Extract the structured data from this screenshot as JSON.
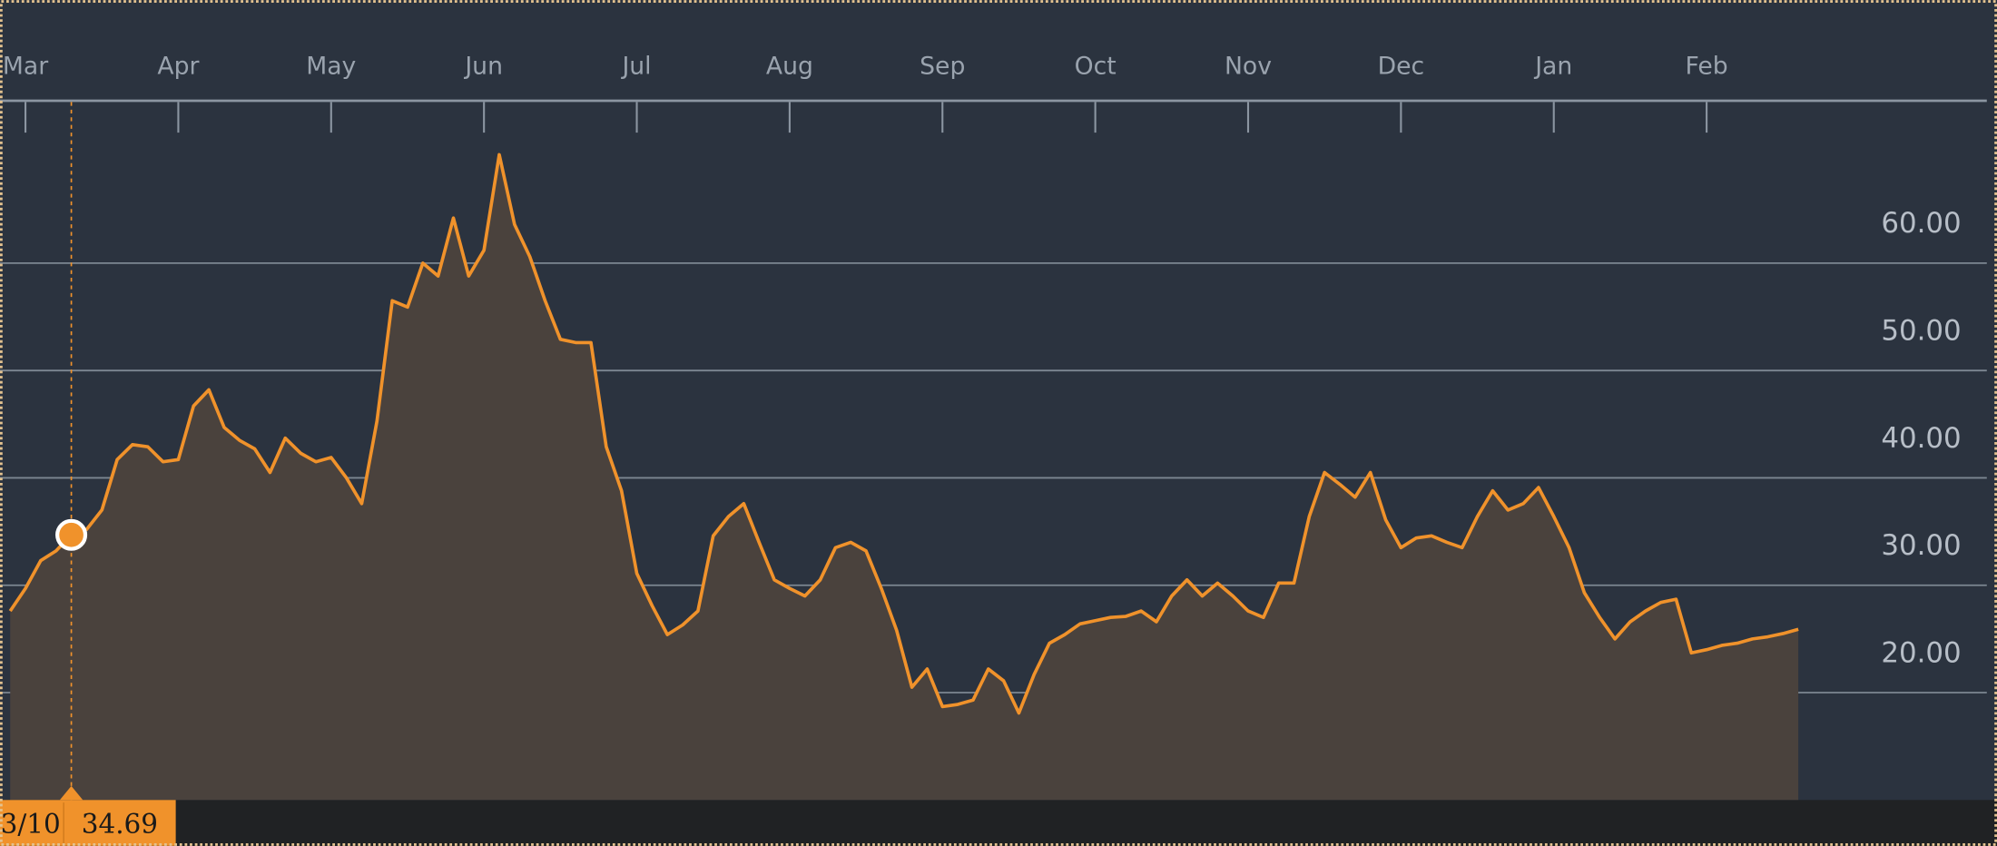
{
  "chart_data": {
    "type": "line",
    "categories": [
      null,
      "Mar",
      null,
      null,
      null,
      null,
      null,
      null,
      null,
      null,
      null,
      "Apr",
      null,
      null,
      null,
      null,
      null,
      null,
      null,
      null,
      null,
      "May",
      null,
      null,
      null,
      null,
      null,
      null,
      null,
      null,
      null,
      "Jun",
      null,
      null,
      null,
      null,
      null,
      null,
      null,
      null,
      null,
      "Jul",
      null,
      null,
      null,
      null,
      null,
      null,
      null,
      null,
      null,
      "Aug",
      null,
      null,
      null,
      null,
      null,
      null,
      null,
      null,
      null,
      "Sep",
      null,
      null,
      null,
      null,
      null,
      null,
      null,
      null,
      null,
      "Oct",
      null,
      null,
      null,
      null,
      null,
      null,
      null,
      null,
      null,
      "Nov",
      null,
      null,
      null,
      null,
      null,
      null,
      null,
      null,
      null,
      "Dec",
      null,
      null,
      null,
      null,
      null,
      null,
      null,
      null,
      null,
      "Jan",
      null,
      null,
      null,
      null,
      null,
      null,
      null,
      null,
      null,
      "Feb",
      null,
      null,
      null,
      null,
      null,
      null
    ],
    "values": [
      27.6,
      29.7,
      32.3,
      33.2,
      34.69,
      35.2,
      37.0,
      41.7,
      43.1,
      42.9,
      41.5,
      41.7,
      46.7,
      48.2,
      44.7,
      43.5,
      42.7,
      40.5,
      43.7,
      42.3,
      41.5,
      41.9,
      40.0,
      37.6,
      45.3,
      56.5,
      55.9,
      60.0,
      58.8,
      64.2,
      58.8,
      61.2,
      70.1,
      63.6,
      60.6,
      56.5,
      52.9,
      52.6,
      52.6,
      42.9,
      38.8,
      31.1,
      28.1,
      25.4,
      26.3,
      27.6,
      34.6,
      36.4,
      37.6,
      34.0,
      30.5,
      29.7,
      29.0,
      30.5,
      33.5,
      34.0,
      33.2,
      29.7,
      25.8,
      20.5,
      22.2,
      18.7,
      18.9,
      19.3,
      22.2,
      21.1,
      18.1,
      21.7,
      24.6,
      25.4,
      26.4,
      26.7,
      27.0,
      27.1,
      27.6,
      26.6,
      29.0,
      30.5,
      29.0,
      30.2,
      29.0,
      27.6,
      27.0,
      30.2,
      30.2,
      36.4,
      40.5,
      39.4,
      38.2,
      40.5,
      36.1,
      33.5,
      34.4,
      34.6,
      34.0,
      33.5,
      36.4,
      38.8,
      37.0,
      37.6,
      39.1,
      36.4,
      33.5,
      29.3,
      27.0,
      25.0,
      26.6,
      27.6,
      28.4,
      28.7,
      23.7,
      24.0,
      24.4,
      24.6,
      25.0,
      25.2,
      25.5,
      25.9
    ],
    "color": "#f0922b",
    "ylim": [
      10,
      75
    ],
    "yticks": [
      {
        "value": 20,
        "label": "20.00"
      },
      {
        "value": 30,
        "label": "30.00"
      },
      {
        "value": 40,
        "label": "40.00"
      },
      {
        "value": 50,
        "label": "50.00"
      },
      {
        "value": 60,
        "label": "60.00"
      }
    ],
    "grid": true,
    "crosshair": {
      "date": "3/10",
      "value": 34.69
    }
  }
}
